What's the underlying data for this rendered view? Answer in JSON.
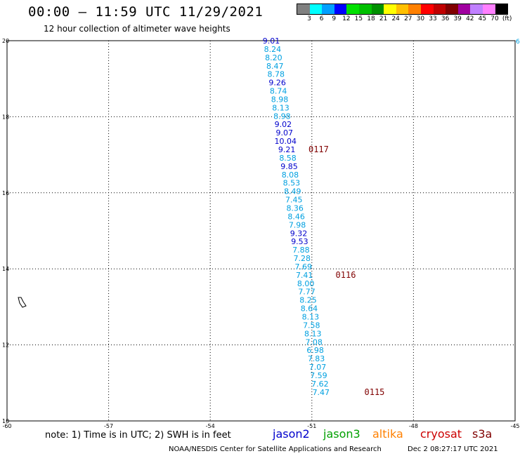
{
  "header": {
    "title": "00:00 – 11:59 UTC 11/29/2021",
    "subtitle": "12 hour collection of altimeter wave heights"
  },
  "colorbar": {
    "colors": [
      "#808080",
      "#00ffff",
      "#00a0ff",
      "#0000ff",
      "#00e000",
      "#00c000",
      "#009000",
      "#ffff00",
      "#ffc000",
      "#ff8000",
      "#ff0000",
      "#c00000",
      "#800000",
      "#a000a0",
      "#c080ff",
      "#ff80ff",
      "#000000"
    ],
    "labels": [
      "3",
      "6",
      "9",
      "12",
      "15",
      "18",
      "21",
      "24",
      "27",
      "30",
      "33",
      "36",
      "39",
      "42",
      "45",
      "70",
      "(ft)"
    ]
  },
  "axes": {
    "lon_labels": [
      "-60",
      "-57",
      "-54",
      "-51",
      "-48",
      "-45"
    ],
    "lat_labels": [
      "10",
      "12",
      "14",
      "16",
      "18",
      "20"
    ],
    "right_label": "6"
  },
  "chart_data": {
    "type": "scatter",
    "x_range": [
      -60,
      -45
    ],
    "y_range": [
      10,
      20
    ],
    "points": [
      {
        "lat": 20.0,
        "lon": -52.2,
        "v": "9.01",
        "sat": "jason2"
      },
      {
        "lat": 19.78,
        "lon": -52.16,
        "v": "8.24",
        "sat": "jason3"
      },
      {
        "lat": 19.56,
        "lon": -52.13,
        "v": "8.20",
        "sat": "jason3"
      },
      {
        "lat": 19.34,
        "lon": -52.09,
        "v": "8.47",
        "sat": "jason3"
      },
      {
        "lat": 19.12,
        "lon": -52.06,
        "v": "8.78",
        "sat": "jason3"
      },
      {
        "lat": 18.9,
        "lon": -52.02,
        "v": "9.26",
        "sat": "jason2"
      },
      {
        "lat": 18.68,
        "lon": -51.99,
        "v": "8.74",
        "sat": "jason3"
      },
      {
        "lat": 18.46,
        "lon": -51.95,
        "v": "8.98",
        "sat": "jason3"
      },
      {
        "lat": 18.24,
        "lon": -51.92,
        "v": "8.13",
        "sat": "jason3"
      },
      {
        "lat": 18.02,
        "lon": -51.88,
        "v": "8.98",
        "sat": "jason3"
      },
      {
        "lat": 17.8,
        "lon": -51.85,
        "v": "9.02",
        "sat": "jason2"
      },
      {
        "lat": 17.58,
        "lon": -51.81,
        "v": "9.07",
        "sat": "jason2"
      },
      {
        "lat": 17.36,
        "lon": -51.78,
        "v": "10.04",
        "sat": "jason2"
      },
      {
        "lat": 17.14,
        "lon": -51.74,
        "v": "9.21",
        "sat": "jason2"
      },
      {
        "lat": 16.92,
        "lon": -51.71,
        "v": "8.58",
        "sat": "jason3"
      },
      {
        "lat": 16.7,
        "lon": -51.67,
        "v": "9.85",
        "sat": "jason2"
      },
      {
        "lat": 16.48,
        "lon": -51.64,
        "v": "8.08",
        "sat": "jason3"
      },
      {
        "lat": 16.26,
        "lon": -51.6,
        "v": "8.53",
        "sat": "jason3"
      },
      {
        "lat": 16.04,
        "lon": -51.57,
        "v": "8.49",
        "sat": "jason3"
      },
      {
        "lat": 15.82,
        "lon": -51.53,
        "v": "7.45",
        "sat": "jason3"
      },
      {
        "lat": 15.6,
        "lon": -51.5,
        "v": "8.36",
        "sat": "jason3"
      },
      {
        "lat": 15.38,
        "lon": -51.46,
        "v": "8.46",
        "sat": "jason3"
      },
      {
        "lat": 15.16,
        "lon": -51.43,
        "v": "7.98",
        "sat": "jason3"
      },
      {
        "lat": 14.94,
        "lon": -51.39,
        "v": "9.32",
        "sat": "jason2"
      },
      {
        "lat": 14.72,
        "lon": -51.36,
        "v": "9.53",
        "sat": "jason2"
      },
      {
        "lat": 14.5,
        "lon": -51.32,
        "v": "7.88",
        "sat": "jason3"
      },
      {
        "lat": 14.28,
        "lon": -51.29,
        "v": "7.28",
        "sat": "jason3"
      },
      {
        "lat": 14.06,
        "lon": -51.25,
        "v": "7.69",
        "sat": "jason3"
      },
      {
        "lat": 13.84,
        "lon": -51.22,
        "v": "7.41",
        "sat": "jason3"
      },
      {
        "lat": 13.62,
        "lon": -51.18,
        "v": "8.00",
        "sat": "jason3"
      },
      {
        "lat": 13.4,
        "lon": -51.15,
        "v": "7.77",
        "sat": "jason3"
      },
      {
        "lat": 13.18,
        "lon": -51.11,
        "v": "8.25",
        "sat": "jason3"
      },
      {
        "lat": 12.96,
        "lon": -51.08,
        "v": "8.64",
        "sat": "jason3"
      },
      {
        "lat": 12.74,
        "lon": -51.04,
        "v": "8.13",
        "sat": "jason3"
      },
      {
        "lat": 12.52,
        "lon": -51.01,
        "v": "7.58",
        "sat": "jason3"
      },
      {
        "lat": 12.3,
        "lon": -50.97,
        "v": "8.13",
        "sat": "jason3"
      },
      {
        "lat": 12.08,
        "lon": -50.94,
        "v": "7.08",
        "sat": "jason3"
      },
      {
        "lat": 11.86,
        "lon": -50.9,
        "v": "6.98",
        "sat": "jason3"
      },
      {
        "lat": 11.64,
        "lon": -50.87,
        "v": "7.83",
        "sat": "jason3"
      },
      {
        "lat": 11.42,
        "lon": -50.83,
        "v": "7.07",
        "sat": "jason3"
      },
      {
        "lat": 11.2,
        "lon": -50.8,
        "v": "7.59",
        "sat": "jason3"
      },
      {
        "lat": 10.98,
        "lon": -50.76,
        "v": "7.62",
        "sat": "jason3"
      },
      {
        "lat": 10.76,
        "lon": -50.73,
        "v": "7.47",
        "sat": "jason3"
      }
    ],
    "time_labels": [
      {
        "lat": 17.14,
        "lon": -51.1,
        "text": "0117"
      },
      {
        "lat": 13.84,
        "lon": -50.3,
        "text": "0116"
      },
      {
        "lat": 10.76,
        "lon": -49.45,
        "text": "0115"
      }
    ]
  },
  "sat_colors": {
    "jason2": "#0000cc",
    "jason3": "#00a0e0",
    "altika": "#ff8000",
    "cryosat": "#cc0000",
    "s3a": "#800000"
  },
  "time_color": "#800000",
  "footer": {
    "note": "note: 1) Time is in UTC; 2) SWH is in feet",
    "legend": [
      "jason2",
      "jason3",
      "altika",
      "cryosat",
      "s3a"
    ],
    "credit": "NOAA/NESDIS Center for Satellite Applications and Research",
    "timestamp": "Dec  2 08:27:17 UTC 2021"
  }
}
